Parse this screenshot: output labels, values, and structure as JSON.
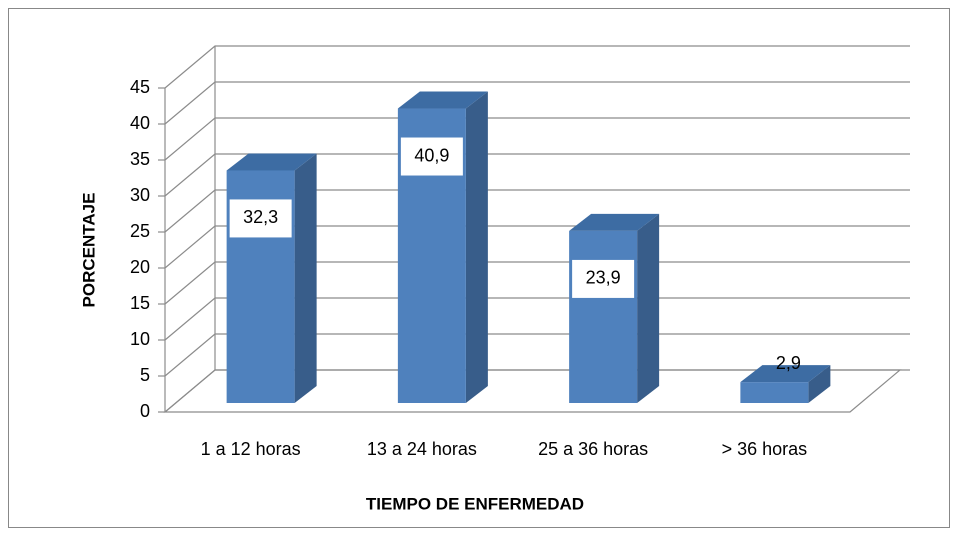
{
  "chart_data": {
    "type": "bar3d",
    "categories": [
      "1 a 12 horas",
      "13 a 24 horas",
      "25 a 36 horas",
      "> 36 horas"
    ],
    "values": [
      32.3,
      40.9,
      23.9,
      2.9
    ],
    "value_labels": [
      "32,3",
      "40,9",
      "23,9",
      "2,9"
    ],
    "color": "#4f81bd",
    "ylim": [
      0,
      45
    ],
    "yticks": [
      0,
      5,
      10,
      15,
      20,
      25,
      30,
      35,
      40,
      45
    ],
    "y_label": "PORCENTAJE",
    "x_label": "TIEMPO DE ENFERMEDAD",
    "grid": true
  }
}
